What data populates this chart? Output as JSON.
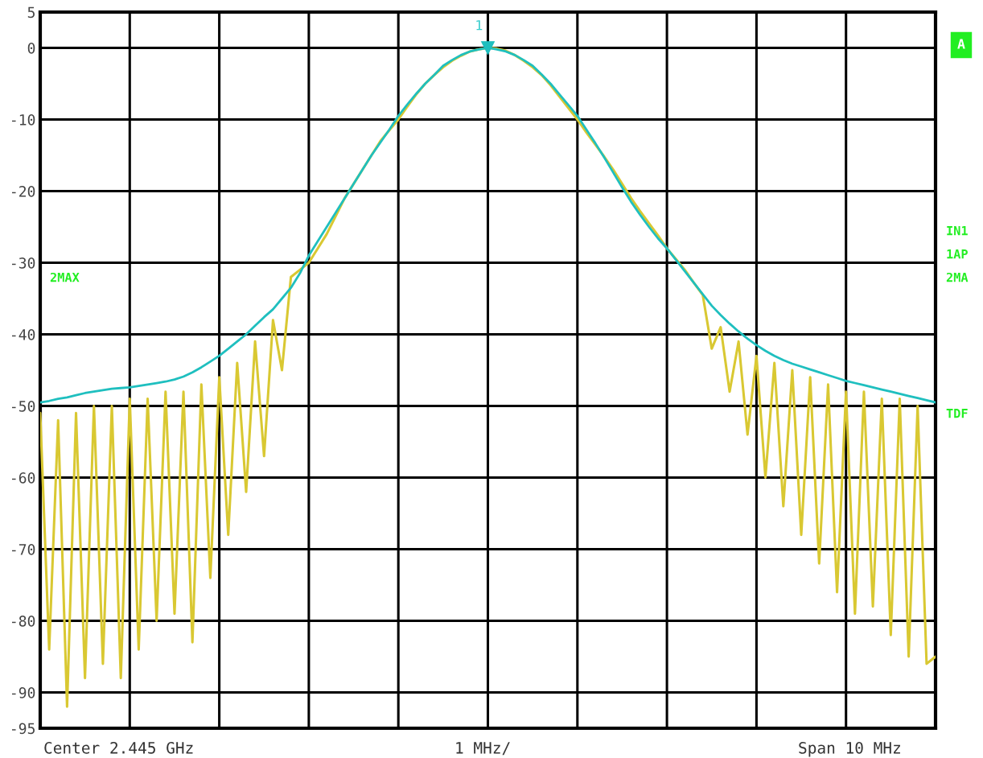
{
  "chart_data": {
    "type": "line",
    "categories": [
      null,
      null,
      null,
      null,
      null,
      null,
      null,
      null,
      null,
      null,
      null,
      null,
      null,
      null,
      null,
      null,
      null,
      null,
      null,
      null,
      null,
      null,
      null,
      null,
      null,
      null,
      null,
      null,
      null,
      null,
      null,
      null,
      null,
      null,
      null,
      null,
      null,
      null,
      null,
      null,
      null,
      null,
      null,
      null,
      null,
      null,
      null,
      null,
      null,
      null,
      null,
      null,
      null,
      null,
      null,
      null,
      null,
      null,
      null,
      null,
      null,
      null,
      null,
      null,
      null,
      null,
      null,
      null,
      null,
      null,
      null,
      null,
      null,
      null,
      null,
      null,
      null,
      null,
      null,
      null,
      null,
      null,
      null,
      null,
      null,
      null,
      null,
      null,
      null,
      null,
      null,
      null,
      null,
      null,
      null,
      null,
      null,
      null,
      null,
      null,
      null
    ],
    "ylim": [
      -95,
      5
    ],
    "yticks": [
      5,
      0,
      -10,
      -20,
      -30,
      -40,
      -50,
      -60,
      -70,
      -80,
      -90,
      -95
    ],
    "tick_labels": "y",
    "grid": true,
    "marker": "none",
    "line_style": "solid",
    "series": [
      {
        "color": "#d9c832",
        "values": [
          -51,
          -84,
          -52,
          -92,
          -51,
          -88,
          -50,
          -86,
          -50,
          -88,
          -49,
          -84,
          -49,
          -80,
          -48,
          -79,
          -48,
          -83,
          -47,
          -74,
          -46,
          -68,
          -44,
          -62,
          -41,
          -57,
          -38,
          -45,
          -32,
          -31,
          -30,
          -28,
          -26,
          -23.5,
          -21,
          -19,
          -17,
          -15,
          -13,
          -11.5,
          -10,
          -8.2,
          -6.5,
          -5,
          -3.8,
          -2.7,
          -1.8,
          -1.1,
          -0.5,
          -0.2,
          0,
          -0.1,
          -0.4,
          -1,
          -1.8,
          -2.7,
          -3.8,
          -5.2,
          -6.8,
          -8.4,
          -10,
          -11.8,
          -13.5,
          -15.2,
          -17,
          -19,
          -21,
          -22.8,
          -24.5,
          -26.2,
          -28,
          -29.5,
          -31,
          -32.8,
          -34.5,
          -42,
          -39,
          -48,
          -41,
          -54,
          -43,
          -60,
          -44,
          -64,
          -45,
          -68,
          -46,
          -72,
          -47,
          -76,
          -48,
          -79,
          -48,
          -78,
          -49,
          -82,
          -49,
          -85,
          -50,
          -86,
          -85
        ]
      },
      {
        "color": "#1fbfbf",
        "values": [
          -49.5,
          -49.3,
          -49.0,
          -48.8,
          -48.5,
          -48.2,
          -48.0,
          -47.8,
          -47.6,
          -47.5,
          -47.4,
          -47.2,
          -47.0,
          -46.8,
          -46.6,
          -46.3,
          -45.9,
          -45.3,
          -44.6,
          -43.8,
          -43,
          -42,
          -41,
          -40,
          -38.8,
          -37.6,
          -36.5,
          -35,
          -33.5,
          -31.5,
          -29,
          -27,
          -25,
          -23,
          -21,
          -19,
          -17,
          -15,
          -13.2,
          -11.4,
          -9.5,
          -7.9,
          -6.4,
          -5.0,
          -3.8,
          -2.5,
          -1.7,
          -1.0,
          -0.5,
          -0.2,
          0,
          -0.2,
          -0.5,
          -1.0,
          -1.7,
          -2.5,
          -3.7,
          -5.0,
          -6.5,
          -8.0,
          -9.5,
          -11.4,
          -13.3,
          -15.3,
          -17.4,
          -19.5,
          -21.5,
          -23.3,
          -25,
          -26.6,
          -28,
          -29.6,
          -31.2,
          -32.8,
          -34.4,
          -36,
          -37.3,
          -38.5,
          -39.6,
          -40.6,
          -41.5,
          -42.3,
          -43,
          -43.6,
          -44.1,
          -44.5,
          -44.9,
          -45.3,
          -45.7,
          -46.1,
          -46.5,
          -46.8,
          -47.1,
          -47.4,
          -47.7,
          -48,
          -48.3,
          -48.6,
          -48.9,
          -49.2,
          -49.5
        ]
      }
    ],
    "annotations": [
      {
        "text": "1",
        "y": 0
      },
      "2MAX",
      "A",
      "IN1",
      "1AP",
      "2MA",
      "TDF",
      "Center 2.445 GHz",
      "1 MHz/",
      "Span 10 MHz"
    ]
  }
}
